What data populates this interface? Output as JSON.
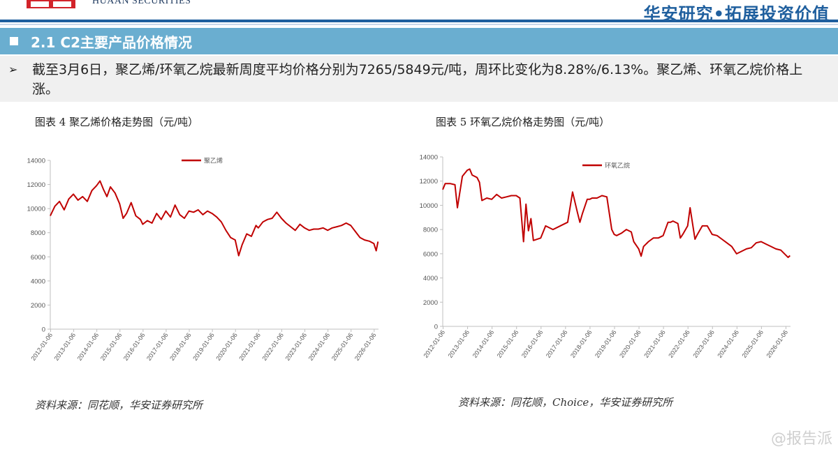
{
  "header": {
    "brand": "HUAAN SECURITIES",
    "slogan": "华安研究•拓展投资价值"
  },
  "section": {
    "title": "2.1 C2主要产品价格情况"
  },
  "summary": {
    "text": "截至3月6日，聚乙烯/环氧乙烷最新周度平均价格分别为7265/5849元/吨，周环比变化为8.28%/6.13%。聚乙烯、环氧乙烷价格上涨。"
  },
  "figures": {
    "left_title": "图表 4 聚乙烯价格走势图（元/吨）",
    "right_title": "图表 5 环氧乙烷价格走势图（元/吨）",
    "left_source": "资料来源：同花顺，华安证券研究所",
    "right_source": "资料来源：同花顺，Choice，华安证券研究所"
  },
  "watermark": "@报告派",
  "colors": {
    "series": "#c00000",
    "accent": "#1f5f9e",
    "section_bar": "#6aaed0"
  },
  "chart_data": [
    {
      "type": "line",
      "title": "",
      "legend": "top-center",
      "ylim": [
        0,
        14000
      ],
      "yticks": [
        0,
        2000,
        4000,
        6000,
        8000,
        10000,
        12000,
        14000
      ],
      "xlim": [
        2012.0,
        2026.2
      ],
      "xticks": [
        "2012-01-06",
        "2013-01-06",
        "2014-01-06",
        "2015-01-06",
        "2016-01-06",
        "2017-01-06",
        "2018-01-06",
        "2019-01-06",
        "2020-01-06",
        "2021-01-06",
        "2022-01-06",
        "2023-01-06",
        "2024-01-06",
        "2025-01-06",
        "2026-01-06"
      ],
      "series": [
        {
          "name": "聚乙烯",
          "x": [
            2012.0,
            2012.2,
            2012.4,
            2012.6,
            2012.8,
            2013.0,
            2013.2,
            2013.4,
            2013.6,
            2013.8,
            2014.0,
            2014.15,
            2014.3,
            2014.45,
            2014.6,
            2014.8,
            2015.0,
            2015.15,
            2015.3,
            2015.5,
            2015.7,
            2015.9,
            2016.0,
            2016.2,
            2016.4,
            2016.6,
            2016.8,
            2017.0,
            2017.2,
            2017.4,
            2017.6,
            2017.8,
            2018.0,
            2018.2,
            2018.4,
            2018.6,
            2018.8,
            2019.0,
            2019.2,
            2019.4,
            2019.6,
            2019.8,
            2020.0,
            2020.15,
            2020.3,
            2020.5,
            2020.7,
            2020.9,
            2021.0,
            2021.2,
            2021.4,
            2021.6,
            2021.8,
            2022.0,
            2022.2,
            2022.4,
            2022.6,
            2022.8,
            2023.0,
            2023.2,
            2023.4,
            2023.6,
            2023.8,
            2024.0,
            2024.2,
            2024.4,
            2024.6,
            2024.8,
            2025.0,
            2025.2,
            2025.4,
            2025.6,
            2025.8,
            2026.0,
            2026.1,
            2026.18
          ],
          "y": [
            9400,
            10200,
            10600,
            9900,
            10800,
            11200,
            10700,
            11000,
            10600,
            11500,
            11900,
            12300,
            11600,
            11000,
            11800,
            11300,
            10400,
            9200,
            9600,
            10500,
            9400,
            9100,
            8700,
            9000,
            8800,
            9600,
            9100,
            9800,
            9300,
            10300,
            9500,
            9200,
            9800,
            9700,
            9900,
            9500,
            9800,
            9600,
            9300,
            8900,
            8200,
            7600,
            7400,
            6100,
            7000,
            7900,
            7700,
            8600,
            8400,
            8900,
            9100,
            9200,
            9700,
            9200,
            8800,
            8500,
            8200,
            8700,
            8400,
            8200,
            8300,
            8300,
            8400,
            8200,
            8400,
            8500,
            8600,
            8800,
            8600,
            8100,
            7600,
            7400,
            7300,
            7100,
            6500,
            7265
          ]
        }
      ]
    },
    {
      "type": "line",
      "title": "",
      "legend": "top-center",
      "ylim": [
        0,
        14000
      ],
      "yticks": [
        0,
        2000,
        4000,
        6000,
        8000,
        10000,
        12000,
        14000
      ],
      "xlim": [
        2012.0,
        2026.2
      ],
      "xticks": [
        "2012-01-06",
        "2013-01-06",
        "2014-01-06",
        "2015-01-06",
        "2016-01-06",
        "2017-01-06",
        "2018-01-06",
        "2019-01-06",
        "2020-01-06",
        "2021-01-06",
        "2022-01-06",
        "2023-01-06",
        "2024-01-06",
        "2025-01-06",
        "2026-01-06"
      ],
      "series": [
        {
          "name": "环氧乙烷",
          "x": [
            2012.0,
            2012.1,
            2012.3,
            2012.5,
            2012.6,
            2012.8,
            2013.0,
            2013.1,
            2013.2,
            2013.4,
            2013.5,
            2013.6,
            2013.8,
            2014.0,
            2014.2,
            2014.4,
            2014.6,
            2014.8,
            2015.0,
            2015.15,
            2015.3,
            2015.4,
            2015.5,
            2015.6,
            2015.7,
            2016.0,
            2016.2,
            2016.5,
            2016.7,
            2016.9,
            2017.1,
            2017.3,
            2017.5,
            2017.6,
            2017.7,
            2017.9,
            2018.0,
            2018.1,
            2018.3,
            2018.5,
            2018.7,
            2018.9,
            2019.0,
            2019.1,
            2019.3,
            2019.5,
            2019.7,
            2019.8,
            2020.0,
            2020.1,
            2020.2,
            2020.4,
            2020.6,
            2020.8,
            2021.0,
            2021.2,
            2021.3,
            2021.4,
            2021.6,
            2021.7,
            2021.8,
            2022.0,
            2022.1,
            2022.3,
            2022.4,
            2022.6,
            2022.8,
            2023.0,
            2023.2,
            2023.4,
            2023.6,
            2023.8,
            2024.0,
            2024.2,
            2024.4,
            2024.6,
            2024.8,
            2025.0,
            2025.2,
            2025.4,
            2025.6,
            2025.8,
            2026.0,
            2026.1,
            2026.18
          ],
          "y": [
            11300,
            11800,
            11800,
            11700,
            9800,
            12400,
            12900,
            13000,
            12500,
            12300,
            11900,
            10400,
            10600,
            10500,
            10900,
            10600,
            10700,
            10800,
            10800,
            10600,
            7000,
            10100,
            7900,
            8900,
            7100,
            7300,
            8300,
            8000,
            8200,
            8400,
            8600,
            11100,
            9400,
            8600,
            9300,
            10500,
            10500,
            10600,
            10600,
            10800,
            10700,
            8000,
            7600,
            7500,
            7700,
            8000,
            7800,
            7000,
            6400,
            5800,
            6600,
            7000,
            7300,
            7300,
            7500,
            8600,
            8600,
            8700,
            8500,
            7300,
            7600,
            8300,
            9800,
            7200,
            7600,
            8300,
            8300,
            7600,
            7500,
            7200,
            6900,
            6600,
            6000,
            6200,
            6400,
            6500,
            6900,
            7000,
            6800,
            6600,
            6400,
            6300,
            5900,
            5700,
            5849
          ]
        }
      ]
    }
  ]
}
